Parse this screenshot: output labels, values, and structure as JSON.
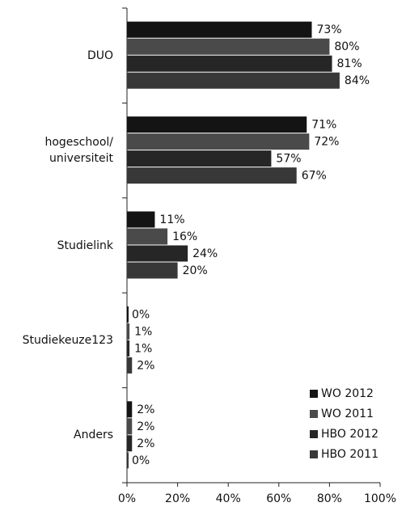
{
  "chart_data": {
    "type": "bar",
    "orientation": "horizontal",
    "categories": [
      "DUO",
      "hogeschool/\nuniversiteit",
      "Studielink",
      "Studiekeuze123",
      "Anders"
    ],
    "series": [
      {
        "name": "WO 2012",
        "color": "#141414",
        "values": [
          73,
          71,
          11,
          0,
          2
        ],
        "value_labels": [
          "73%",
          "71%",
          "11%",
          "0%",
          "2%"
        ]
      },
      {
        "name": "WO 2011",
        "color": "#4a4a4a",
        "values": [
          80,
          72,
          16,
          1,
          2
        ],
        "value_labels": [
          "80%",
          "72%",
          "16%",
          "1%",
          "2%"
        ]
      },
      {
        "name": "HBO 2012",
        "color": "#262626",
        "values": [
          81,
          57,
          24,
          1,
          2
        ],
        "value_labels": [
          "81%",
          "57%",
          "24%",
          "1%",
          "2%"
        ]
      },
      {
        "name": "HBO 2011",
        "color": "#383838",
        "values": [
          84,
          67,
          20,
          2,
          0
        ],
        "value_labels": [
          "84%",
          "67%",
          "20%",
          "2%",
          "0%"
        ]
      }
    ],
    "xlim": [
      0,
      100
    ],
    "xticks": [
      {
        "value": 0,
        "label": "0%"
      },
      {
        "value": 20,
        "label": "20%"
      },
      {
        "value": 40,
        "label": "40%"
      },
      {
        "value": 60,
        "label": "60%"
      },
      {
        "value": 80,
        "label": "80%"
      },
      {
        "value": 100,
        "label": "100%"
      }
    ],
    "legend": "lower right"
  }
}
